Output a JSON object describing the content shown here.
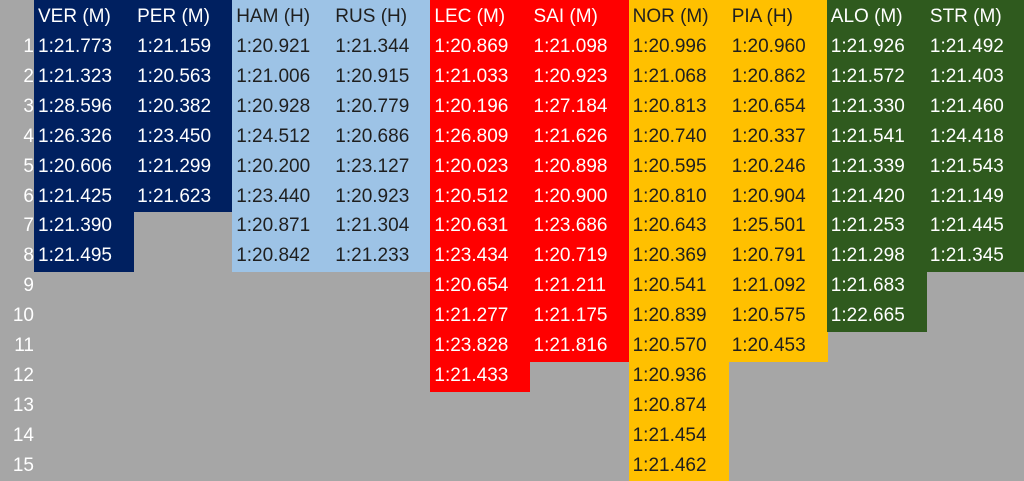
{
  "teams": [
    {
      "team": "red-bull",
      "bg": "#002060",
      "fg": "#ffffff",
      "drivers": [
        {
          "header": "VER (M)",
          "laps": [
            "1:21.773",
            "1:21.323",
            "1:28.596",
            "1:26.326",
            "1:20.606",
            "1:21.425",
            "1:21.390",
            "1:21.495"
          ]
        },
        {
          "header": "PER (M)",
          "laps": [
            "1:21.159",
            "1:20.563",
            "1:20.382",
            "1:23.450",
            "1:21.299",
            "1:21.623"
          ]
        }
      ]
    },
    {
      "team": "mercedes",
      "bg": "#9dc3e6",
      "fg": "#1f1f1f",
      "drivers": [
        {
          "header": "HAM (H)",
          "laps": [
            "1:20.921",
            "1:21.006",
            "1:20.928",
            "1:24.512",
            "1:20.200",
            "1:23.440",
            "1:20.871",
            "1:20.842"
          ]
        },
        {
          "header": "RUS (H)",
          "laps": [
            "1:21.344",
            "1:20.915",
            "1:20.779",
            "1:20.686",
            "1:23.127",
            "1:20.923",
            "1:21.304",
            "1:21.233"
          ]
        }
      ]
    },
    {
      "team": "ferrari",
      "bg": "#ff0000",
      "fg": "#ffffff",
      "drivers": [
        {
          "header": "LEC (M)",
          "laps": [
            "1:20.869",
            "1:21.033",
            "1:20.196",
            "1:26.809",
            "1:20.023",
            "1:20.512",
            "1:20.631",
            "1:23.434",
            "1:20.654",
            "1:21.277",
            "1:23.828",
            "1:21.433"
          ]
        },
        {
          "header": "SAI (M)",
          "laps": [
            "1:21.098",
            "1:20.923",
            "1:27.184",
            "1:21.626",
            "1:20.898",
            "1:20.900",
            "1:23.686",
            "1:20.719",
            "1:21.211",
            "1:21.175",
            "1:21.816"
          ]
        }
      ]
    },
    {
      "team": "mclaren",
      "bg": "#ffc000",
      "fg": "#1f1f1f",
      "drivers": [
        {
          "header": "NOR (M)",
          "laps": [
            "1:20.996",
            "1:21.068",
            "1:20.813",
            "1:20.740",
            "1:20.595",
            "1:20.810",
            "1:20.643",
            "1:20.369",
            "1:20.541",
            "1:20.839",
            "1:20.570",
            "1:20.936",
            "1:20.874",
            "1:21.454",
            "1:21.462"
          ]
        },
        {
          "header": "PIA (H)",
          "laps": [
            "1:20.960",
            "1:20.862",
            "1:20.654",
            "1:20.337",
            "1:20.246",
            "1:20.904",
            "1:25.501",
            "1:20.791",
            "1:21.092",
            "1:20.575",
            "1:20.453"
          ]
        }
      ]
    },
    {
      "team": "aston-martin",
      "bg": "#2f5a1e",
      "fg": "#ffffff",
      "drivers": [
        {
          "header": "ALO (M)",
          "laps": [
            "1:21.926",
            "1:21.572",
            "1:21.330",
            "1:21.541",
            "1:21.339",
            "1:21.420",
            "1:21.253",
            "1:21.298",
            "1:21.683",
            "1:22.665"
          ]
        },
        {
          "header": "STR (M)",
          "laps": [
            "1:21.492",
            "1:21.403",
            "1:21.460",
            "1:24.418",
            "1:21.543",
            "1:21.149",
            "1:21.445",
            "1:21.345"
          ]
        }
      ]
    }
  ],
  "row_numbers": [
    "1",
    "2",
    "3",
    "4",
    "5",
    "6",
    "7",
    "8",
    "9",
    "10",
    "11",
    "12",
    "13",
    "14",
    "15"
  ]
}
